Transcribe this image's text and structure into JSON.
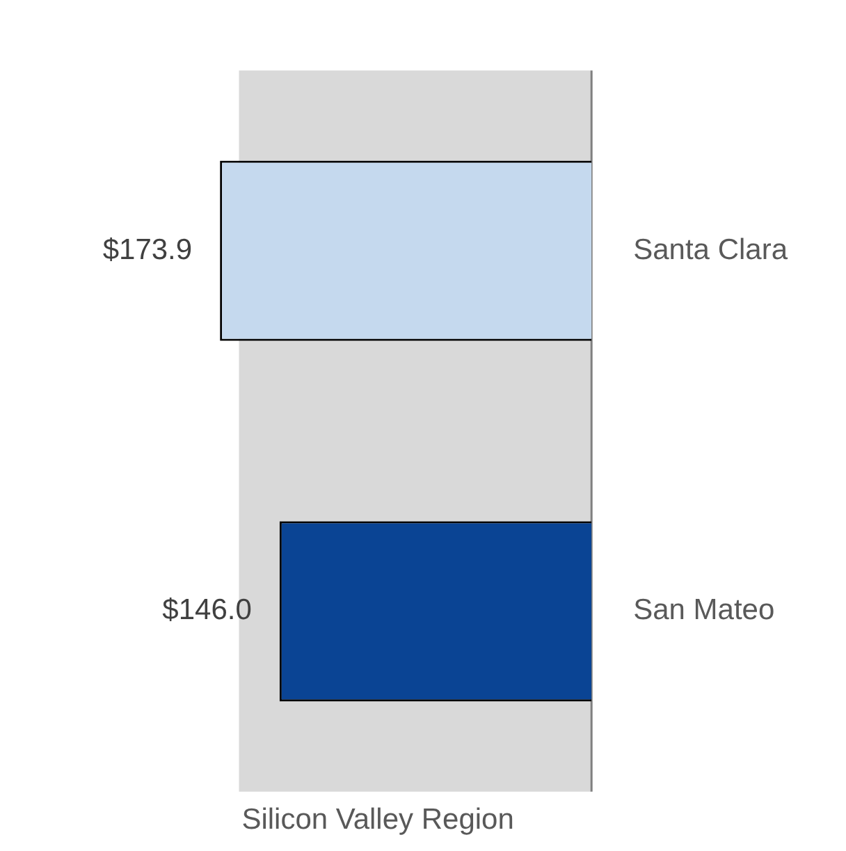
{
  "chart_data": {
    "type": "bar",
    "orientation": "horizontal",
    "xlabel": "Silicon Valley Region",
    "categories": [
      "Santa Clara",
      "San Mateo"
    ],
    "values": [
      173.9,
      146.0
    ],
    "colors": [
      "#c5d9ee",
      "#0a4494"
    ],
    "value_labels": [
      "$173.9",
      "$146.0"
    ],
    "bands": [
      {
        "axis": "x",
        "from": 165,
        "to": 0,
        "color": "#d9d9d9"
      }
    ],
    "grid": false,
    "legend": false
  }
}
